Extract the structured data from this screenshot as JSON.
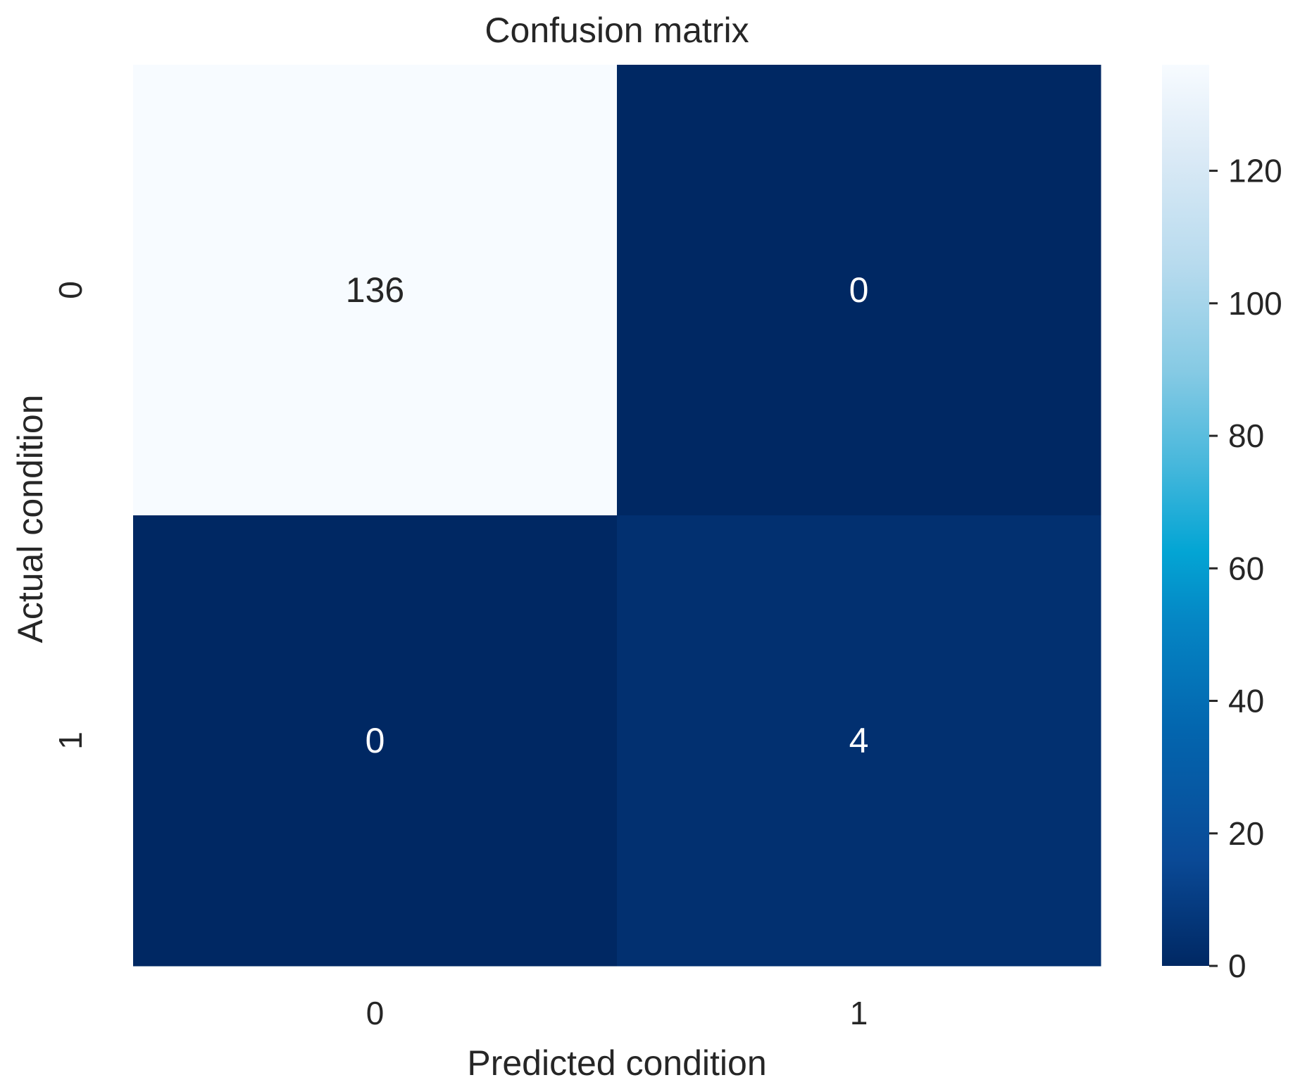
{
  "chart_data": {
    "type": "heatmap",
    "title": "Confusion matrix",
    "xlabel": "Predicted condition",
    "ylabel": "Actual condition",
    "x_categories": [
      "0",
      "1"
    ],
    "y_categories": [
      "0",
      "1"
    ],
    "values": [
      [
        136,
        0
      ],
      [
        0,
        4
      ]
    ],
    "cell_labels": [
      [
        "136",
        "0"
      ],
      [
        "0",
        "4"
      ]
    ],
    "colormap": "Blues_r",
    "colorbar": {
      "range": [
        0,
        136
      ],
      "ticks": [
        0,
        20,
        40,
        60,
        80,
        100,
        120
      ],
      "tick_labels": [
        "0",
        "20",
        "40",
        "60",
        "80",
        "100",
        "120"
      ]
    },
    "colors": {
      "low": "#002863",
      "high": "#f7fbff",
      "text_on_light": "#262626",
      "text_on_dark": "#ffffff"
    }
  }
}
